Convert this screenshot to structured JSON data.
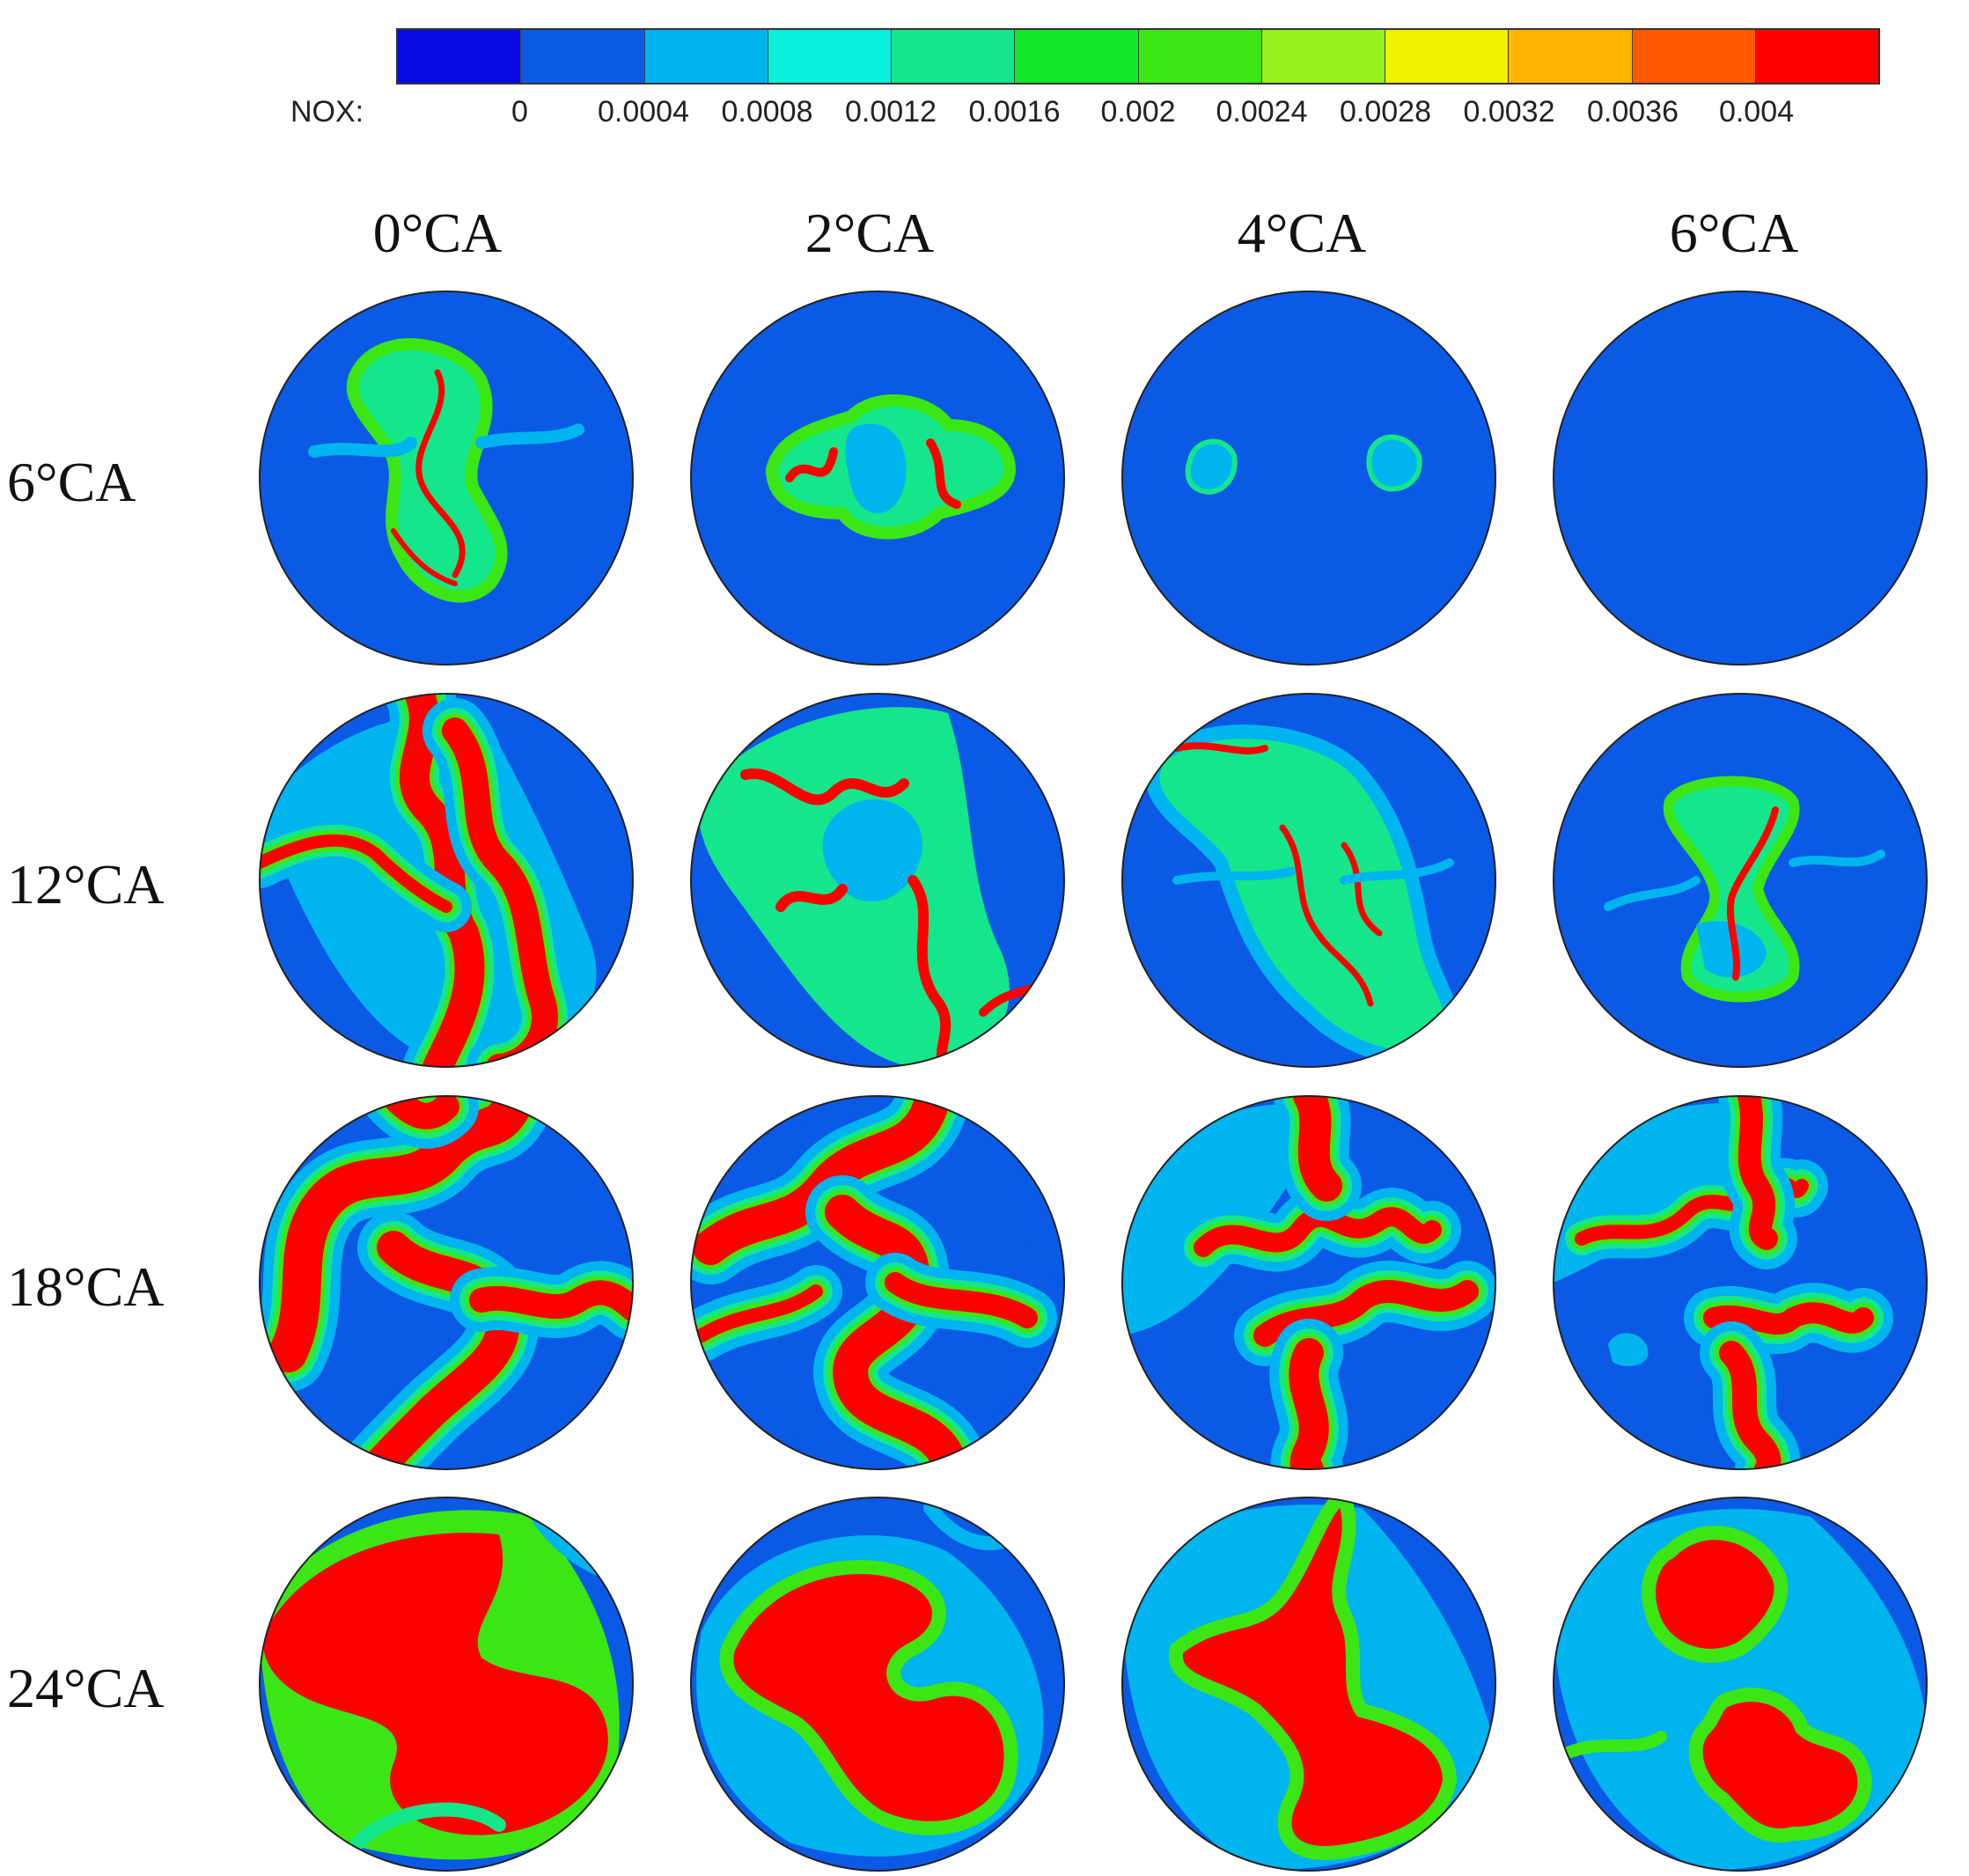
{
  "colorbar": {
    "variable_label": "NOX:",
    "ticks": [
      "0",
      "0.0004",
      "0.0008",
      "0.0012",
      "0.0016",
      "0.002",
      "0.0024",
      "0.0028",
      "0.0032",
      "0.0036",
      "0.004"
    ],
    "colors": [
      "#0a0ae6",
      "#0a5ae6",
      "#00b4f0",
      "#0af0dc",
      "#14e68c",
      "#14e628",
      "#3ce614",
      "#96f01e",
      "#f0f000",
      "#ffb400",
      "#ff5a00",
      "#ff0000"
    ]
  },
  "columns": [
    "0°CA",
    "2°CA",
    "4°CA",
    "6°CA"
  ],
  "rows": [
    "6°CA",
    "12°CA",
    "18°CA",
    "24°CA"
  ],
  "colors": {
    "background_field": "#0a5ae6",
    "low": "#00b4f0",
    "mid": "#14e68c",
    "green": "#3ce614",
    "high": "#ff0000",
    "outline": "#222222"
  }
}
